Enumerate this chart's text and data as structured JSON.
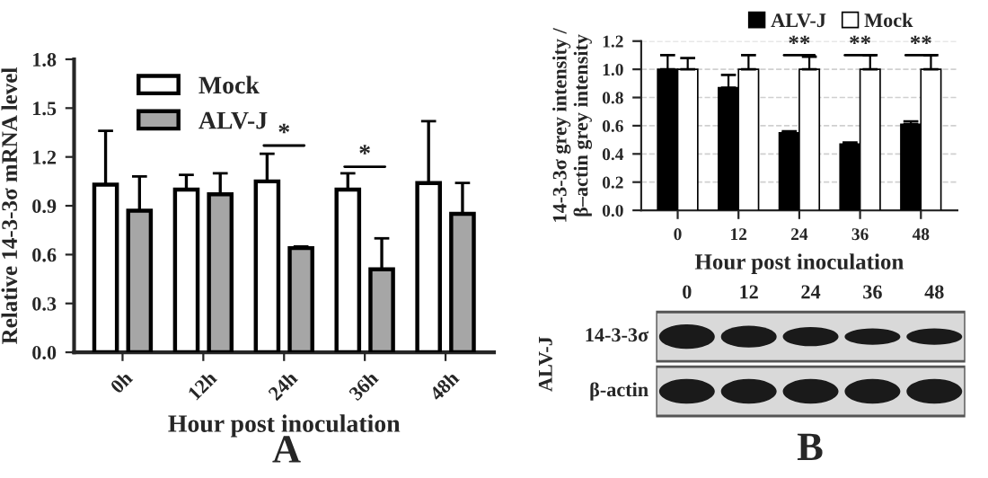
{
  "chart_data": [
    {
      "type": "bar",
      "categories": [
        "0h",
        "12h",
        "24h",
        "36h",
        "48h"
      ],
      "ylabel": "Relative 14-3-3σ mRNA level",
      "xlabel": "Hour post inoculation",
      "series": [
        {
          "name": "Mock",
          "color": "#ffffff",
          "values": [
            1.03,
            1.0,
            1.05,
            1.0,
            1.04
          ],
          "errors": [
            0.33,
            0.09,
            0.17,
            0.1,
            0.38
          ]
        },
        {
          "name": "ALV-J",
          "color": "#a6a6a6",
          "values": [
            0.87,
            0.97,
            0.64,
            0.51,
            0.85
          ],
          "errors": [
            0.21,
            0.13,
            0.01,
            0.19,
            0.19
          ]
        }
      ],
      "ylim": [
        0,
        1.8
      ],
      "yticks": [
        {
          "value": 0,
          "label": "0.0"
        },
        {
          "value": 0.3,
          "label": "0.3"
        },
        {
          "value": 0.6,
          "label": "0.6"
        },
        {
          "value": 0.9,
          "label": "0.9"
        },
        {
          "value": 1.2,
          "label": "1.2"
        },
        {
          "value": 1.5,
          "label": "1.5"
        },
        {
          "value": 1.8,
          "label": "1.8"
        }
      ],
      "grid": false,
      "legend": "top left",
      "annotations": [
        "*",
        "*",
        "A"
      ]
    },
    {
      "type": "bar",
      "categories": [
        "0",
        "12",
        "24",
        "36",
        "48"
      ],
      "ylabel": "14-3-3σ grey intensity /\nβ–actin grey intensity",
      "xlabel": "Hour post inoculation",
      "series": [
        {
          "name": "ALV-J",
          "color": "#000000",
          "values": [
            1.0,
            0.87,
            0.55,
            0.47,
            0.61
          ],
          "errors": [
            0.1,
            0.09,
            0.01,
            0.01,
            0.02
          ]
        },
        {
          "name": "Mock",
          "color": "#ffffff",
          "values": [
            1.0,
            1.0,
            1.0,
            1.0,
            1.0
          ],
          "errors": [
            0.08,
            0.1,
            0.09,
            0.1,
            0.1
          ]
        }
      ],
      "ylim": [
        0,
        1.2
      ],
      "yticks": [
        {
          "value": 0,
          "label": "0.0"
        },
        {
          "value": 0.2,
          "label": "0.2"
        },
        {
          "value": 0.4,
          "label": "0.4"
        },
        {
          "value": 0.6,
          "label": "0.6"
        },
        {
          "value": 0.8,
          "label": "0.8"
        },
        {
          "value": 1.0,
          "label": "1.0"
        },
        {
          "value": 1.2,
          "label": "1.2"
        }
      ],
      "grid": "y",
      "legend": "top",
      "annotations": [
        {
          "text": "**",
          "x": "24",
          "y": 1.1
        },
        {
          "text": "**",
          "x": "36",
          "y": 1.1
        },
        {
          "text": "**",
          "x": "48",
          "y": 1.1
        },
        "0",
        "12",
        "24",
        "36",
        "48",
        "14-3-3σ",
        "β-actin",
        "ALV-J",
        "B"
      ]
    }
  ]
}
